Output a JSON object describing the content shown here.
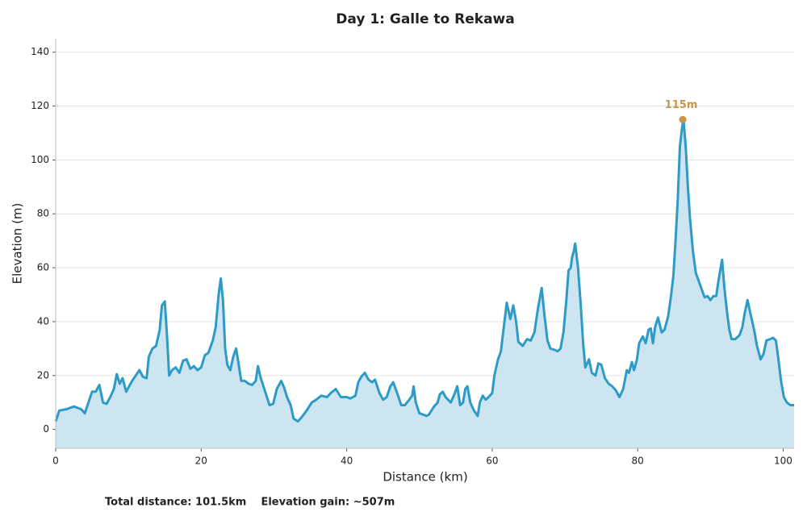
{
  "chart_data": {
    "type": "area",
    "title": "Day 1: Galle to Rekawa",
    "xlabel": "Distance (km)",
    "ylabel": "Elevation (m)",
    "color": "#2e9bc6",
    "fill_color": "#cce5f0",
    "grid": true,
    "xlim": [
      0,
      101.5
    ],
    "ylim": [
      -7,
      145
    ],
    "xticks": [
      0,
      20,
      40,
      60,
      80,
      100
    ],
    "yticks": [
      0,
      20,
      40,
      60,
      80,
      100,
      120,
      140
    ],
    "x": [
      0,
      0.5,
      1.5,
      2.5,
      3.5,
      4,
      4.5,
      5,
      5.5,
      6,
      6.5,
      7,
      7.5,
      8,
      8.4,
      8.8,
      9.2,
      9.7,
      10.5,
      11,
      11.5,
      12,
      12.5,
      12.8,
      13.3,
      13.8,
      14.3,
      14.6,
      15,
      15.3,
      15.6,
      16,
      16.5,
      17,
      17.5,
      18,
      18.5,
      19,
      19.5,
      20,
      20.5,
      21,
      21.6,
      22,
      22.4,
      22.7,
      23,
      23.3,
      23.6,
      24,
      24.4,
      24.8,
      25.1,
      25.5,
      26,
      26.5,
      27,
      27.5,
      27.8,
      28.2,
      28.8,
      29.4,
      29.9,
      30.4,
      31,
      31.4,
      31.8,
      32.3,
      32.7,
      33.3,
      33.8,
      34.5,
      35.2,
      35.8,
      36.5,
      37.3,
      37.8,
      38.5,
      39.2,
      40,
      40.5,
      41.2,
      41.6,
      42,
      42.5,
      43,
      43.5,
      43.9,
      44.5,
      45,
      45.5,
      46,
      46.4,
      47,
      47.5,
      48,
      48.6,
      49,
      49.2,
      49.5,
      50,
      50.5,
      51,
      51.3,
      52,
      52.5,
      52.8,
      53.2,
      53.6,
      54.3,
      54.8,
      55.2,
      55.6,
      56,
      56.3,
      56.6,
      57,
      57.5,
      58,
      58.3,
      58.7,
      59.1,
      59.5,
      60,
      60.3,
      60.8,
      61.2,
      61.6,
      62,
      62.5,
      62.9,
      63.3,
      63.6,
      64.2,
      64.8,
      65.3,
      65.8,
      66.3,
      66.8,
      67.2,
      67.6,
      68,
      68.6,
      69,
      69.4,
      69.8,
      70.2,
      70.5,
      70.8,
      71,
      71.2,
      71.4,
      71.8,
      72.2,
      72.5,
      72.8,
      73.3,
      73.7,
      74.2,
      74.6,
      75,
      75.5,
      76,
      76.5,
      77,
      77.5,
      78,
      78.5,
      78.8,
      79.2,
      79.5,
      79.9,
      80.2,
      80.7,
      81.1,
      81.5,
      81.8,
      82.1,
      82.4,
      82.8,
      83.3,
      83.7,
      84.2,
      84.6,
      84.9,
      85.2,
      85.5,
      85.8,
      86.1,
      86.3,
      86.6,
      86.9,
      87.2,
      87.6,
      88,
      88.4,
      88.8,
      89.2,
      89.6,
      90,
      90.4,
      90.8,
      91.1,
      91.4,
      91.6,
      91.9,
      92.3,
      92.6,
      92.9,
      93.4,
      94,
      94.4,
      94.7,
      95.1,
      95.5,
      96,
      96.4,
      96.9,
      97.3,
      97.7,
      98.2,
      98.6,
      99,
      99.3,
      99.7,
      100.1,
      100.5,
      101,
      101.5
    ],
    "values": [
      3,
      7,
      7.5,
      8.5,
      7.5,
      6,
      10,
      14,
      14,
      16.5,
      10,
      9.5,
      12,
      15,
      20.5,
      17,
      19,
      14,
      18,
      20,
      22,
      19.5,
      19,
      27,
      30,
      31,
      37,
      46,
      47.5,
      35,
      20,
      22,
      23,
      21,
      25.5,
      26,
      22.5,
      23.5,
      22,
      23,
      27.5,
      28.5,
      33,
      38,
      50,
      56,
      48,
      30,
      24,
      22,
      27,
      30,
      25,
      18,
      18,
      17,
      16.5,
      18,
      23.5,
      19,
      14,
      9,
      9.5,
      15,
      18,
      15.5,
      12,
      9,
      4,
      3,
      4.5,
      7,
      10,
      11,
      12.5,
      12,
      13.5,
      15,
      12,
      12,
      11.5,
      12.5,
      17.5,
      19.5,
      21,
      18.5,
      17.5,
      18.5,
      13.5,
      11,
      12,
      16,
      17.5,
      13,
      9,
      9,
      11,
      12.5,
      16,
      10,
      6,
      5.5,
      5,
      5.5,
      8.5,
      10,
      13,
      14,
      12,
      10,
      13,
      16,
      9,
      10,
      15,
      16,
      10,
      7,
      5,
      10,
      12.5,
      11,
      12,
      13.5,
      20,
      26,
      29,
      38,
      47,
      41,
      46,
      40,
      32.5,
      31,
      33.5,
      33,
      36,
      45,
      52.5,
      42,
      33,
      30,
      29.5,
      29,
      30,
      36,
      48,
      59,
      60,
      64,
      66,
      69,
      60,
      45,
      32,
      23,
      26,
      21,
      20,
      24.5,
      24,
      19,
      17,
      16,
      14.5,
      12,
      15,
      22,
      21,
      25,
      22,
      26,
      32,
      34.5,
      32,
      37,
      37.5,
      32,
      38,
      41.5,
      36,
      37,
      42,
      50,
      57,
      70,
      85,
      105,
      112,
      115,
      105,
      90,
      78,
      66,
      58,
      55,
      52,
      49,
      49.5,
      48,
      49.5,
      49.5,
      55,
      60,
      63,
      53,
      43,
      37,
      33.5,
      33.5,
      35,
      38,
      43,
      48,
      43,
      37,
      31,
      26,
      28,
      33,
      33.5,
      34,
      33,
      27,
      18,
      12,
      10,
      9,
      9
    ],
    "annotations": [
      {
        "text": "115m",
        "x": 86.2,
        "y": 115,
        "color": "#c8954a"
      }
    ]
  },
  "footer": "Total distance: 101.5km    Elevation gain: ~507m"
}
